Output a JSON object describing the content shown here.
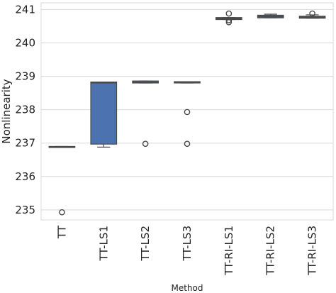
{
  "chart_data": {
    "type": "box",
    "xlabel": "Method",
    "ylabel": "Nonlinearity",
    "ylim": [
      234.7,
      241.2
    ],
    "yticks": [
      235,
      236,
      237,
      238,
      239,
      240,
      241
    ],
    "grid": true,
    "categories": [
      "TT",
      "TT-LS1",
      "TT-LS2",
      "TT-LS3",
      "TT-RI-LS1",
      "TT-RI-LS2",
      "TT-RI-LS3"
    ],
    "boxes": [
      {
        "q1": 236.87,
        "median": 236.88,
        "q3": 236.9,
        "whisker_low": 236.87,
        "whisker_high": 236.9,
        "outliers": [
          234.93
        ]
      },
      {
        "q1": 236.97,
        "median": 238.81,
        "q3": 238.83,
        "whisker_low": 236.88,
        "whisker_high": 238.83,
        "outliers": []
      },
      {
        "q1": 238.8,
        "median": 238.82,
        "q3": 238.86,
        "whisker_low": 238.8,
        "whisker_high": 238.86,
        "outliers": [
          236.98
        ]
      },
      {
        "q1": 238.8,
        "median": 238.82,
        "q3": 238.84,
        "whisker_low": 238.8,
        "whisker_high": 238.84,
        "outliers": [
          237.93,
          236.98
        ]
      },
      {
        "q1": 240.7,
        "median": 240.73,
        "q3": 240.76,
        "whisker_low": 240.7,
        "whisker_high": 240.76,
        "outliers": [
          240.88,
          240.68,
          240.62
        ]
      },
      {
        "q1": 240.75,
        "median": 240.79,
        "q3": 240.83,
        "whisker_low": 240.75,
        "whisker_high": 240.86,
        "outliers": []
      },
      {
        "q1": 240.74,
        "median": 240.77,
        "q3": 240.8,
        "whisker_low": 240.74,
        "whisker_high": 240.84,
        "outliers": [
          240.88
        ]
      }
    ],
    "colors": [
      "#4c72b0",
      "#4c72b0",
      "#4c72b0",
      "#4c72b0",
      "#4c72b0",
      "#4c72b0",
      "#4c72b0"
    ]
  }
}
